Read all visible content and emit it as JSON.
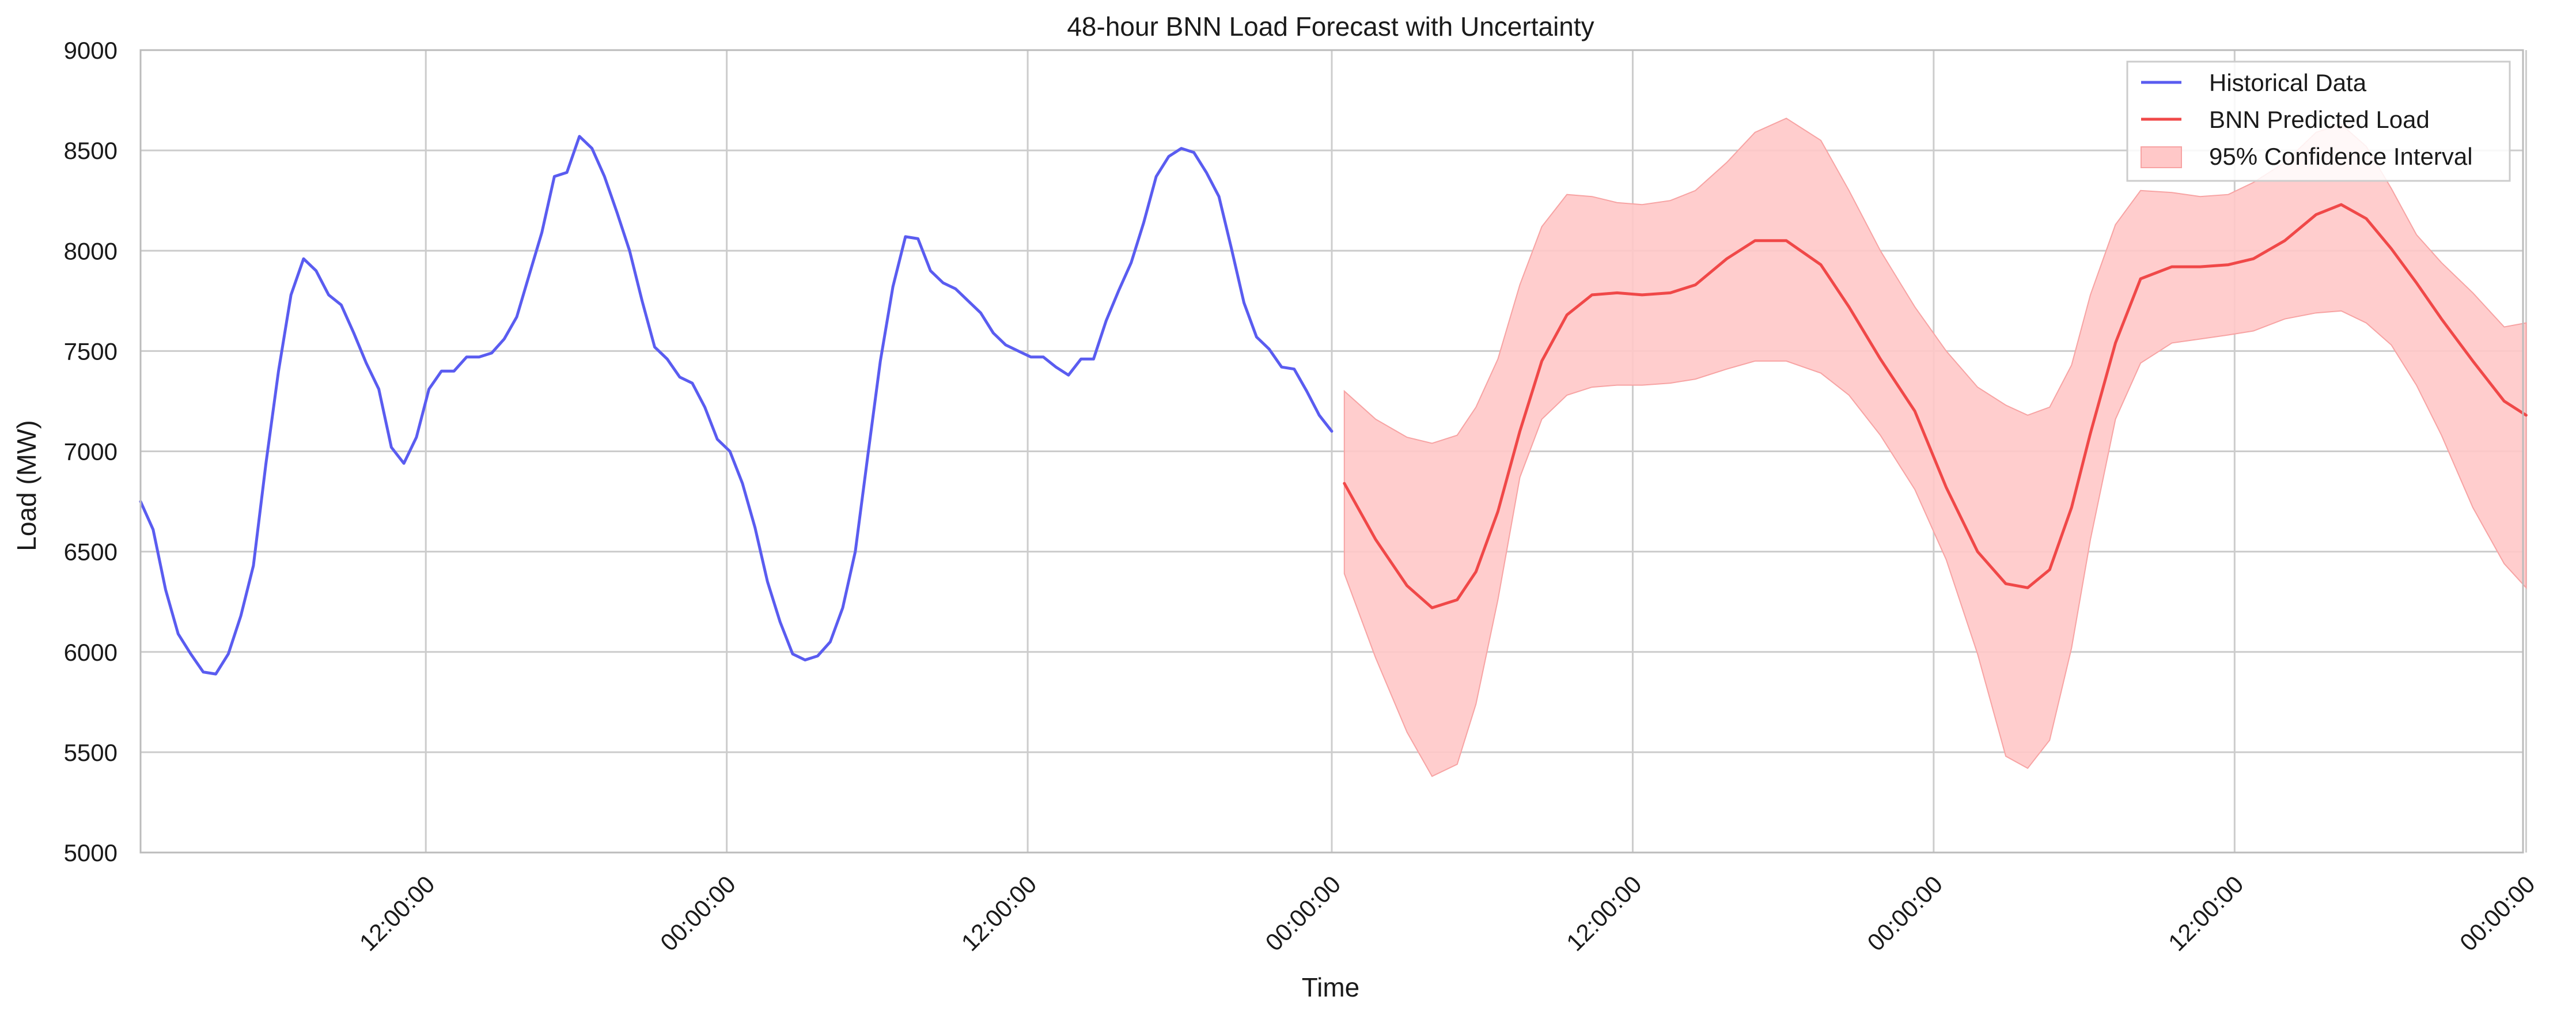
{
  "chart_data": {
    "type": "line",
    "title": "48-hour BNN Load Forecast with Uncertainty",
    "xlabel": "Time",
    "ylabel": "Load (MW)",
    "ylim": [
      5000,
      9000
    ],
    "yticks": [
      5000,
      5500,
      6000,
      6500,
      7000,
      7500,
      8000,
      8500,
      9000
    ],
    "xlim_hours": [
      -38,
      38
    ],
    "xticks": [
      {
        "hour": -28.9,
        "label": "12:00:00"
      },
      {
        "hour": -19.3,
        "label": "00:00:00"
      },
      {
        "hour": -9.7,
        "label": "12:00:00"
      },
      {
        "hour": 0,
        "label": "00:00:00"
      },
      {
        "hour": 9.6,
        "label": "12:00:00"
      },
      {
        "hour": 19.2,
        "label": "00:00:00"
      },
      {
        "hour": 28.8,
        "label": "12:00:00"
      },
      {
        "hour": 38.1,
        "label": "00:00:00"
      }
    ],
    "grid": true,
    "legend_position": "top-right",
    "colors": {
      "historical": "#5a5cf0",
      "predicted": "#f04848",
      "interval_fill": "#ffc8c8",
      "interval_edge": "#f7a3a3",
      "grid": "#cccccc",
      "axes": "#bbbbbb"
    },
    "series": [
      {
        "name": "Historical Data",
        "x": [
          -38,
          -37.6,
          -37.2,
          -36.8,
          -36.4,
          -36,
          -35.6,
          -35.2,
          -34.8,
          -34.4,
          -34,
          -33.6,
          -33.2,
          -32.8,
          -32.4,
          -32,
          -31.6,
          -31.2,
          -30.8,
          -30.4,
          -30,
          -29.6,
          -29.2,
          -28.8,
          -28.4,
          -28,
          -27.6,
          -27.2,
          -26.8,
          -26.4,
          -26,
          -25.6,
          -25.2,
          -24.8,
          -24.4,
          -24,
          -23.6,
          -23.2,
          -22.8,
          -22.4,
          -22,
          -21.6,
          -21.2,
          -20.8,
          -20.4,
          -20,
          -19.6,
          -19.2,
          -18.8,
          -18.4,
          -18,
          -17.6,
          -17.2,
          -16.8,
          -16.4,
          -16,
          -15.6,
          -15.2,
          -14.8,
          -14.4,
          -14,
          -13.6,
          -13.2,
          -12.8,
          -12.4,
          -12,
          -11.6,
          -11.2,
          -10.8,
          -10.4,
          -10,
          -9.6,
          -9.2,
          -8.8,
          -8.4,
          -8,
          -7.6,
          -7.2,
          -6.8,
          -6.4,
          -6,
          -5.6,
          -5.2,
          -4.8,
          -4.4,
          -4,
          -3.6,
          -3.2,
          -2.8,
          -2.4,
          -2,
          -1.6,
          -1.2,
          -0.8,
          -0.4,
          0
        ],
        "values": [
          6750,
          6610,
          6310,
          6090,
          5990,
          5900,
          5890,
          5990,
          6180,
          6430,
          6940,
          7400,
          7780,
          7960,
          7900,
          7780,
          7730,
          7590,
          7440,
          7310,
          7020,
          6940,
          7070,
          7310,
          7400,
          7400,
          7470,
          7470,
          7490,
          7560,
          7670,
          7880,
          8090,
          8370,
          8390,
          8570,
          8510,
          8370,
          8190,
          8000,
          7750,
          7520,
          7460,
          7370,
          7340,
          7220,
          7060,
          7000,
          6840,
          6620,
          6350,
          6150,
          5990,
          5960,
          5980,
          6050,
          6220,
          6500,
          6980,
          7450,
          7820,
          8070,
          8060,
          7900,
          7840,
          7810,
          7750,
          7690,
          7590,
          7530,
          7500,
          7470,
          7470,
          7420,
          7380,
          7460,
          7460,
          7650,
          7800,
          7940,
          8140,
          8370,
          8470,
          8510,
          8490,
          8390,
          8270,
          8010,
          7740,
          7570,
          7510,
          7420,
          7410,
          7300,
          7180,
          7100
        ]
      },
      {
        "name": "BNN Predicted Load",
        "x": [
          0.4,
          1.4,
          2.4,
          3.2,
          4,
          4.6,
          5.3,
          6,
          6.7,
          7.5,
          8.3,
          9.1,
          9.9,
          10.8,
          11.6,
          12.6,
          13.5,
          14.5,
          15.6,
          16.5,
          17.5,
          18.6,
          19.6,
          20.6,
          21.5,
          22.2,
          22.9,
          23.6,
          24.2,
          25,
          25.8,
          26.8,
          27.7,
          28.6,
          29.4,
          30.4,
          31.4,
          32.2,
          33,
          33.8,
          34.6,
          35.4,
          36.4,
          37.4,
          38.1
        ],
        "values": [
          6840,
          6560,
          6330,
          6220,
          6260,
          6400,
          6700,
          7100,
          7450,
          7680,
          7780,
          7790,
          7780,
          7790,
          7830,
          7960,
          8050,
          8050,
          7930,
          7720,
          7460,
          7200,
          6820,
          6500,
          6340,
          6320,
          6410,
          6720,
          7090,
          7540,
          7860,
          7920,
          7920,
          7930,
          7960,
          8050,
          8180,
          8230,
          8160,
          8010,
          7840,
          7660,
          7450,
          7250,
          7180
        ]
      },
      {
        "name": "95% Confidence Interval",
        "x": [
          0.4,
          1.4,
          2.4,
          3.2,
          4,
          4.6,
          5.3,
          6,
          6.7,
          7.5,
          8.3,
          9.1,
          9.9,
          10.8,
          11.6,
          12.6,
          13.5,
          14.5,
          15.6,
          16.5,
          17.5,
          18.6,
          19.6,
          20.6,
          21.5,
          22.2,
          22.9,
          23.6,
          24.2,
          25,
          25.8,
          26.8,
          27.7,
          28.6,
          29.4,
          30.4,
          31.4,
          32.2,
          33,
          33.8,
          34.6,
          35.4,
          36.4,
          37.4,
          38.1
        ],
        "lower": [
          6390,
          5970,
          5600,
          5380,
          5440,
          5740,
          6260,
          6870,
          7160,
          7280,
          7320,
          7330,
          7330,
          7340,
          7360,
          7410,
          7450,
          7450,
          7390,
          7280,
          7080,
          6810,
          6460,
          5990,
          5480,
          5420,
          5560,
          6020,
          6560,
          7160,
          7440,
          7540,
          7560,
          7580,
          7600,
          7660,
          7690,
          7700,
          7640,
          7530,
          7330,
          7080,
          6720,
          6440,
          6320
        ],
        "upper": [
          7300,
          7160,
          7070,
          7040,
          7080,
          7220,
          7460,
          7830,
          8120,
          8280,
          8270,
          8240,
          8230,
          8250,
          8300,
          8440,
          8590,
          8660,
          8550,
          8300,
          8000,
          7720,
          7500,
          7320,
          7230,
          7180,
          7220,
          7430,
          7780,
          8130,
          8300,
          8290,
          8270,
          8280,
          8340,
          8440,
          8590,
          8630,
          8520,
          8310,
          8080,
          7940,
          7790,
          7620,
          7640
        ]
      }
    ]
  }
}
